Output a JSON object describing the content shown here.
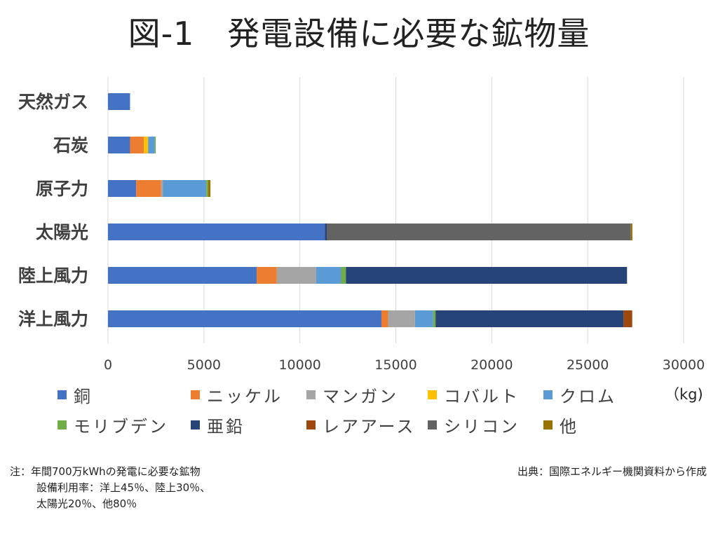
{
  "title": "図-1　発電設備に必要な鉱物量",
  "chart_data": {
    "type": "bar",
    "orientation": "horizontal",
    "stacked": true,
    "title": "図-1　発電設備に必要な鉱物量",
    "unit": "（kg)",
    "xlim": [
      0,
      30000
    ],
    "xticks": [
      "0",
      "5000",
      "10000",
      "15000",
      "20000",
      "25000",
      "30000"
    ],
    "grid": true,
    "legend_position": "bottom",
    "categories": [
      "天然ガス",
      "石炭",
      "原子力",
      "太陽光",
      "陸上風力",
      "洋上風力"
    ],
    "series": [
      {
        "name": "銅",
        "color": "#4472C4",
        "values": [
          1150,
          1150,
          1470,
          11300,
          7750,
          14250
        ]
      },
      {
        "name": "ニッケル",
        "color": "#ED7D31",
        "values": [
          0,
          720,
          1300,
          0,
          1050,
          350
        ]
      },
      {
        "name": "マンガン",
        "color": "#A5A5A5",
        "values": [
          0,
          0,
          100,
          0,
          2050,
          1400
        ]
      },
      {
        "name": "コバルト",
        "color": "#FFC000",
        "values": [
          0,
          220,
          0,
          0,
          0,
          0
        ]
      },
      {
        "name": "クロム",
        "color": "#5B9BD5",
        "values": [
          0,
          350,
          2250,
          0,
          1300,
          950
        ]
      },
      {
        "name": "モリブデン",
        "color": "#70AD47",
        "values": [
          0,
          50,
          100,
          0,
          250,
          120
        ]
      },
      {
        "name": "亜鉛",
        "color": "#264478",
        "values": [
          0,
          0,
          0,
          100,
          14650,
          9800
        ]
      },
      {
        "name": "レアアース",
        "color": "#9E480E",
        "values": [
          0,
          0,
          0,
          0,
          0,
          450
        ]
      },
      {
        "name": "シリコン",
        "color": "#636363",
        "values": [
          0,
          0,
          0,
          15850,
          0,
          0
        ]
      },
      {
        "name": "他",
        "color": "#997300",
        "values": [
          0,
          0,
          120,
          80,
          0,
          0
        ]
      }
    ]
  },
  "note": {
    "line1": "注：年間700万kWhの発電に必要な鉱物",
    "line2": "設備利用率：洋上45％、陸上30％、",
    "line3": "太陽光20％、他80％"
  },
  "source": "出典：国際エネルギー機関資料から作成"
}
